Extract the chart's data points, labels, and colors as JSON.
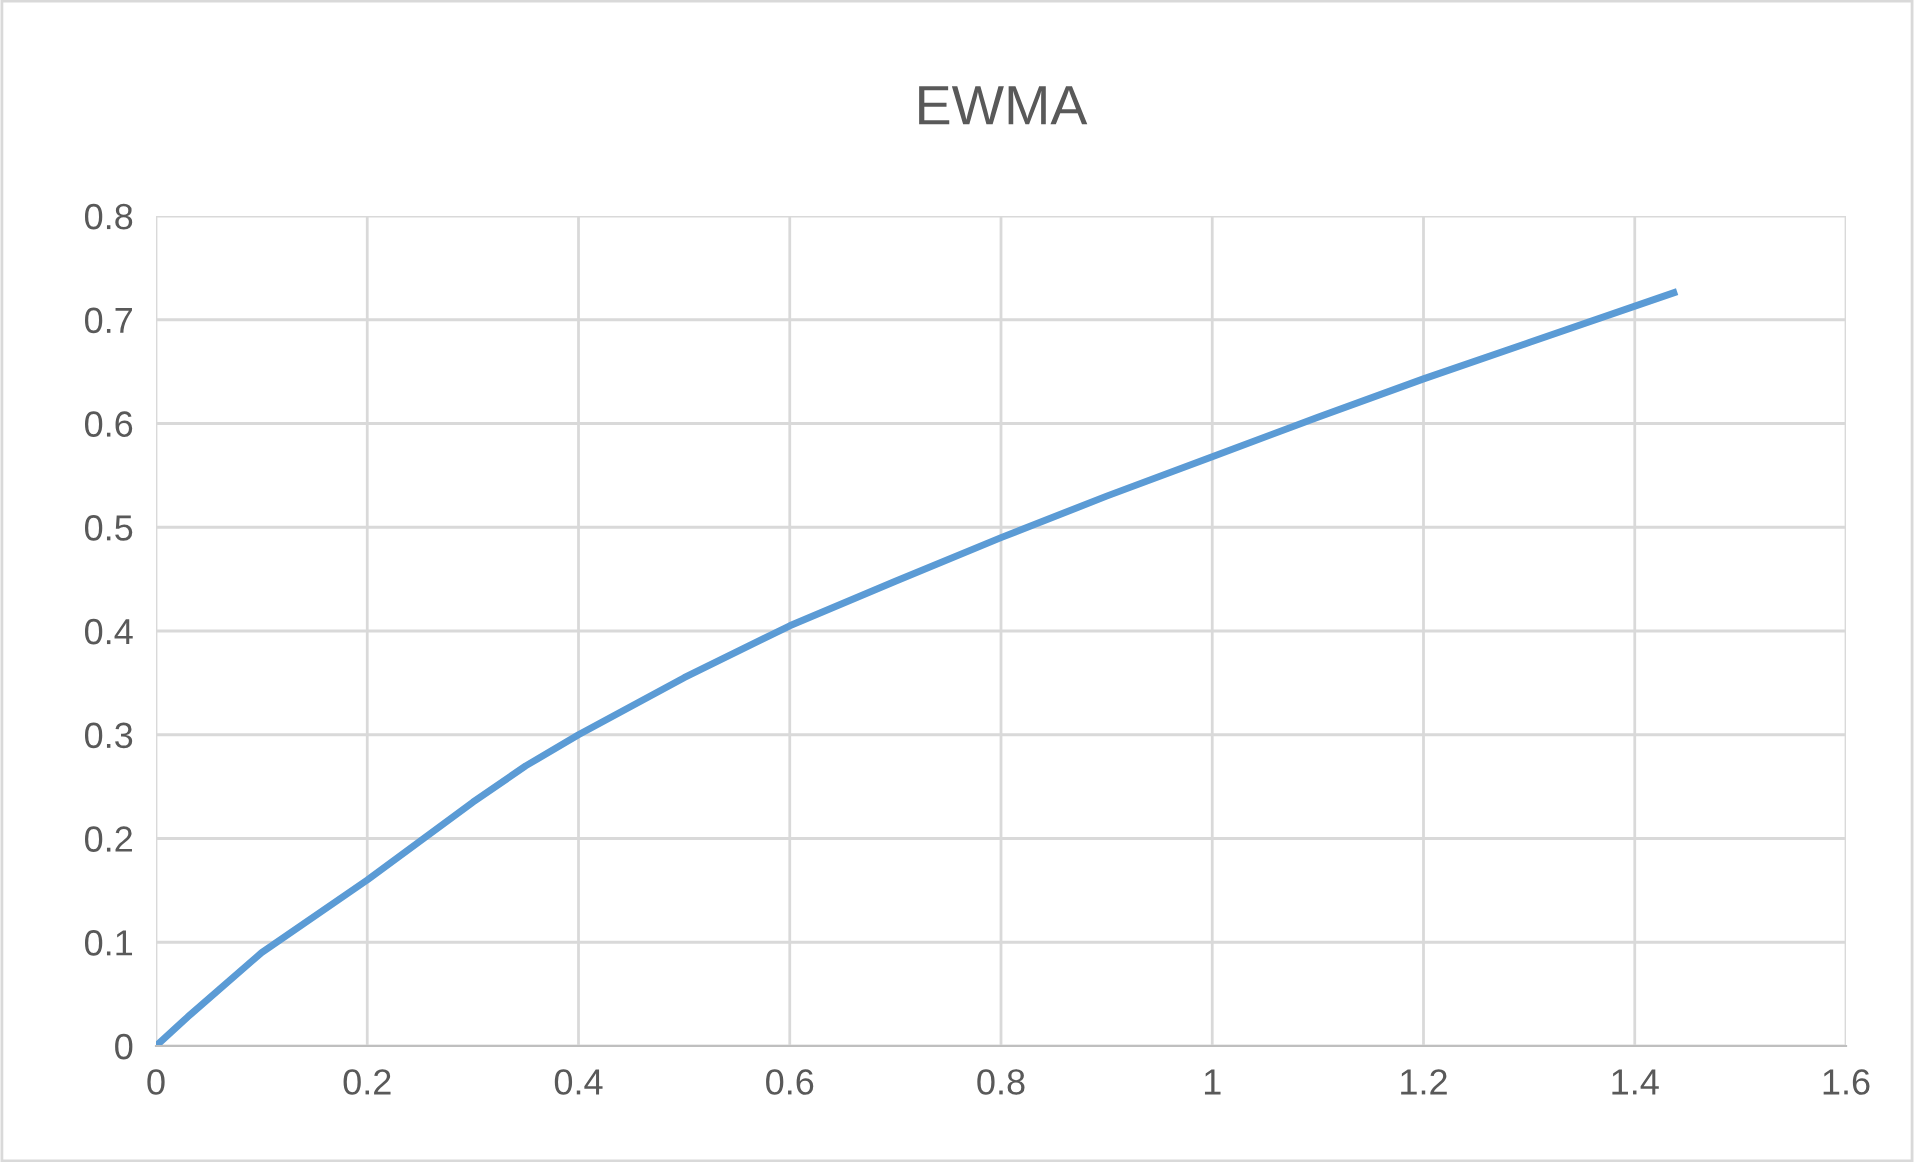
{
  "chart_data": {
    "type": "line",
    "title": "EWMA",
    "x": [
      0,
      0.03,
      0.1,
      0.2,
      0.3,
      0.35,
      0.4,
      0.5,
      0.6,
      0.7,
      0.8,
      0.9,
      1.0,
      1.1,
      1.2,
      1.3,
      1.437
    ],
    "series": [
      {
        "color": "#5b9bd5",
        "values": [
          0,
          0.028,
          0.09,
          0.16,
          0.235,
          0.27,
          0.3,
          0.355,
          0.405,
          0.448,
          0.49,
          0.53,
          0.568,
          0.606,
          0.643,
          0.678,
          0.726
        ]
      }
    ],
    "xlim": [
      0,
      1.6
    ],
    "xticks": [
      0,
      0.2,
      0.4,
      0.6,
      0.8,
      1,
      1.2,
      1.4,
      1.6
    ],
    "ylim": [
      0,
      0.8
    ],
    "yticks": [
      0,
      0.1,
      0.2,
      0.3,
      0.4,
      0.5,
      0.6,
      0.7,
      0.8
    ],
    "grid": true,
    "marker": "none",
    "line_style": "solid",
    "legend": false
  }
}
